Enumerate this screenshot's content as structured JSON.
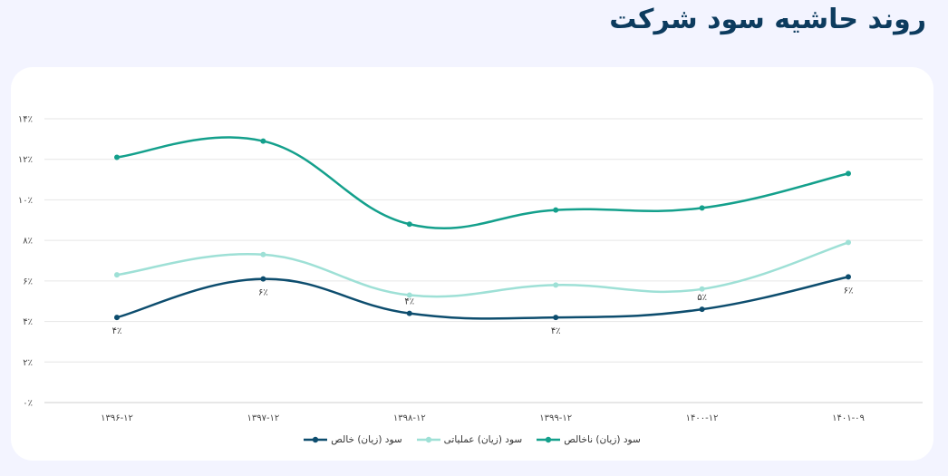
{
  "header": {
    "title": "روند حاشیه سود شرکت"
  },
  "chart_data": {
    "type": "line",
    "title": "روند حاشیه سود شرکت",
    "categories": [
      "۱۳۹۶-۱۲",
      "۱۳۹۷-۱۲",
      "۱۳۹۸-۱۲",
      "۱۳۹۹-۱۲",
      "۱۴۰۰-۱۲",
      "۱۴۰۱-۰۹"
    ],
    "y_ticks": [
      "۰٪",
      "۲٪",
      "۴٪",
      "۶٪",
      "۸٪",
      "۱۰٪",
      "۱۲٪",
      "۱۴٪"
    ],
    "ylim": [
      0,
      14
    ],
    "grid": true,
    "legend_position": "bottom-center",
    "series": [
      {
        "name": "سود (زیان) ناخالص",
        "color": "#14a08c",
        "values": [
          12.1,
          12.9,
          8.8,
          9.5,
          9.6,
          11.3
        ]
      },
      {
        "name": "سود (زیان) عملیاتی",
        "color": "#9ee0d6",
        "values": [
          6.3,
          7.3,
          5.3,
          5.8,
          5.6,
          7.9
        ]
      },
      {
        "name": "سود (زیان) خالص",
        "color": "#0d4d6e",
        "values": [
          4.2,
          6.1,
          4.4,
          4.2,
          4.6,
          6.2
        ],
        "data_labels": [
          "۴٪",
          "۶٪",
          "۴٪",
          "۴٪",
          "۵٪",
          "۶٪"
        ],
        "data_label_position": [
          "below",
          "below",
          "above",
          "below",
          "above",
          "below"
        ]
      }
    ]
  }
}
